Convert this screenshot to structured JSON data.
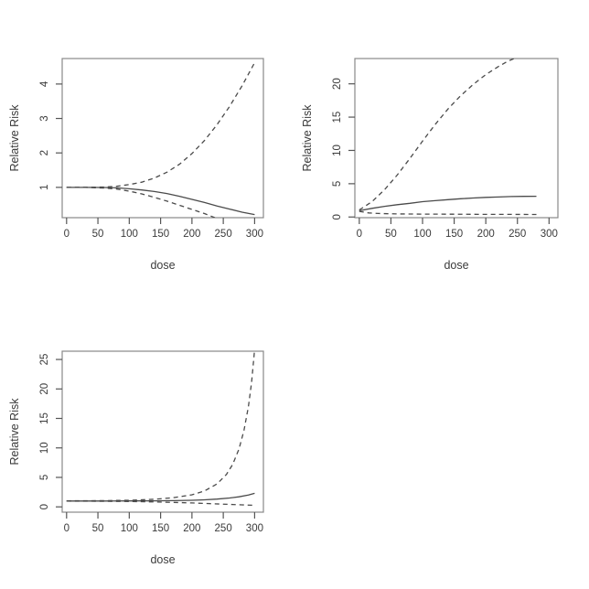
{
  "figure": {
    "background": "#ffffff",
    "description": "Three R-style dose-response plots of Relative Risk vs dose with solid fitted curve and dashed confidence-band curves; bottom-right quadrant empty"
  },
  "colors": {
    "curve": "#4a4a4a",
    "box": "#888888",
    "tick": "#555555",
    "text": "#3a3a3a"
  },
  "chart_data": [
    {
      "type": "line",
      "title": "",
      "xlabel": "dose",
      "ylabel": "Relative Risk",
      "xticks": [
        0,
        50,
        100,
        150,
        200,
        250,
        300
      ],
      "yticks": [
        1,
        2,
        3,
        4
      ],
      "xlim": [
        -7,
        314
      ],
      "ylim": [
        0.12,
        4.74
      ],
      "grid": false,
      "legend": "none",
      "series": [
        {
          "name": "fit",
          "style": "solid",
          "points": [
            [
              0,
              1
            ],
            [
              30,
              1
            ],
            [
              60,
              0.995
            ],
            [
              80,
              0.985
            ],
            [
              100,
              0.96
            ],
            [
              120,
              0.925
            ],
            [
              140,
              0.88
            ],
            [
              160,
              0.82
            ],
            [
              180,
              0.74
            ],
            [
              200,
              0.65
            ],
            [
              220,
              0.56
            ],
            [
              240,
              0.46
            ],
            [
              260,
              0.37
            ],
            [
              280,
              0.28
            ],
            [
              300,
              0.21
            ]
          ]
        },
        {
          "name": "upper-ci",
          "style": "dashed",
          "points": [
            [
              0,
              1
            ],
            [
              30,
              1.002
            ],
            [
              60,
              1.01
            ],
            [
              80,
              1.03
            ],
            [
              100,
              1.08
            ],
            [
              120,
              1.15
            ],
            [
              140,
              1.27
            ],
            [
              160,
              1.44
            ],
            [
              180,
              1.67
            ],
            [
              200,
              1.98
            ],
            [
              220,
              2.36
            ],
            [
              240,
              2.82
            ],
            [
              260,
              3.35
            ],
            [
              280,
              3.95
            ],
            [
              300,
              4.62
            ]
          ]
        },
        {
          "name": "lower-ci",
          "style": "dashed",
          "points": [
            [
              0,
              1
            ],
            [
              30,
              0.998
            ],
            [
              60,
              0.98
            ],
            [
              80,
              0.95
            ],
            [
              100,
              0.89
            ],
            [
              120,
              0.81
            ],
            [
              140,
              0.71
            ],
            [
              160,
              0.6
            ],
            [
              180,
              0.48
            ],
            [
              200,
              0.36
            ],
            [
              220,
              0.24
            ],
            [
              235,
              0.13
            ],
            [
              245,
              0.05
            ]
          ]
        }
      ]
    },
    {
      "type": "line",
      "title": "",
      "xlabel": "dose",
      "ylabel": "Relative Risk",
      "xticks": [
        0,
        50,
        100,
        150,
        200,
        250,
        300
      ],
      "yticks": [
        0,
        5,
        10,
        15,
        20
      ],
      "xlim": [
        -7,
        314
      ],
      "ylim": [
        -0.1,
        23.8
      ],
      "grid": false,
      "legend": "none",
      "series": [
        {
          "name": "fit",
          "style": "solid",
          "points": [
            [
              0,
              0.95
            ],
            [
              20,
              1.3
            ],
            [
              40,
              1.6
            ],
            [
              60,
              1.85
            ],
            [
              80,
              2.06
            ],
            [
              100,
              2.3
            ],
            [
              120,
              2.45
            ],
            [
              140,
              2.6
            ],
            [
              160,
              2.75
            ],
            [
              180,
              2.85
            ],
            [
              200,
              2.95
            ],
            [
              220,
              3.0
            ],
            [
              240,
              3.07
            ],
            [
              260,
              3.1
            ],
            [
              280,
              3.12
            ]
          ]
        },
        {
          "name": "upper-ci",
          "style": "dashed",
          "points": [
            [
              0,
              1.05
            ],
            [
              20,
              2.3
            ],
            [
              40,
              4.1
            ],
            [
              60,
              6.3
            ],
            [
              80,
              8.8
            ],
            [
              100,
              11.4
            ],
            [
              120,
              13.9
            ],
            [
              140,
              16.2
            ],
            [
              160,
              18.2
            ],
            [
              180,
              19.9
            ],
            [
              200,
              21.4
            ],
            [
              220,
              22.6
            ],
            [
              235,
              23.4
            ],
            [
              250,
              24.0
            ]
          ]
        },
        {
          "name": "lower-ci",
          "style": "dashed",
          "points": [
            [
              0,
              0.85
            ],
            [
              15,
              0.62
            ],
            [
              30,
              0.53
            ],
            [
              60,
              0.47
            ],
            [
              100,
              0.44
            ],
            [
              150,
              0.42
            ],
            [
              200,
              0.4
            ],
            [
              240,
              0.39
            ],
            [
              280,
              0.38
            ]
          ]
        }
      ]
    },
    {
      "type": "line",
      "title": "",
      "xlabel": "dose",
      "ylabel": "Relative Risk",
      "xticks": [
        0,
        50,
        100,
        150,
        200,
        250,
        300
      ],
      "yticks": [
        0,
        5,
        10,
        15,
        20,
        25
      ],
      "xlim": [
        -7,
        314
      ],
      "ylim": [
        -0.9,
        26.4
      ],
      "grid": false,
      "legend": "none",
      "series": [
        {
          "name": "fit",
          "style": "solid",
          "points": [
            [
              0,
              1
            ],
            [
              60,
              1
            ],
            [
              100,
              1.01
            ],
            [
              140,
              1.03
            ],
            [
              170,
              1.06
            ],
            [
              200,
              1.12
            ],
            [
              220,
              1.2
            ],
            [
              240,
              1.32
            ],
            [
              260,
              1.5
            ],
            [
              275,
              1.7
            ],
            [
              290,
              2.0
            ],
            [
              300,
              2.3
            ]
          ]
        },
        {
          "name": "upper-ci",
          "style": "dashed",
          "points": [
            [
              0,
              1.02
            ],
            [
              60,
              1.05
            ],
            [
              100,
              1.12
            ],
            [
              140,
              1.28
            ],
            [
              170,
              1.55
            ],
            [
              200,
              2.05
            ],
            [
              220,
              2.7
            ],
            [
              240,
              3.9
            ],
            [
              255,
              5.5
            ],
            [
              265,
              7.2
            ],
            [
              275,
              9.8
            ],
            [
              283,
              13
            ],
            [
              290,
              17
            ],
            [
              295,
              21
            ],
            [
              299,
              25.5
            ],
            [
              300,
              26.8
            ]
          ]
        },
        {
          "name": "lower-ci",
          "style": "dashed",
          "points": [
            [
              0,
              0.98
            ],
            [
              60,
              0.95
            ],
            [
              100,
              0.91
            ],
            [
              140,
              0.84
            ],
            [
              170,
              0.76
            ],
            [
              200,
              0.66
            ],
            [
              230,
              0.54
            ],
            [
              260,
              0.42
            ],
            [
              280,
              0.34
            ],
            [
              300,
              0.27
            ]
          ]
        }
      ]
    }
  ]
}
